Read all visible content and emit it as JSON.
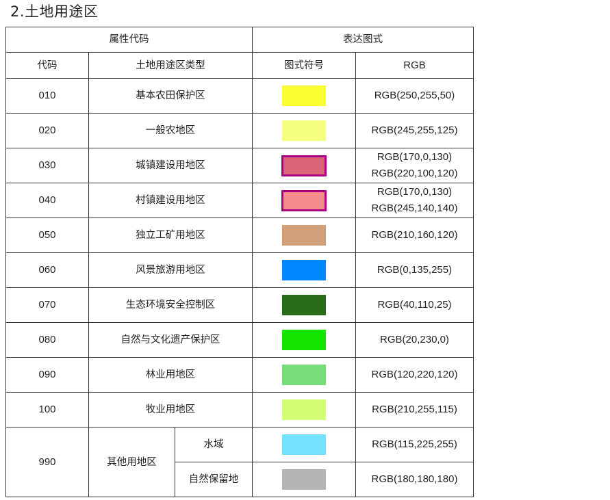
{
  "title": "2.土地用途区",
  "header": {
    "group_attr": "属性代码",
    "group_expr": "表达图式",
    "col_code": "代码",
    "col_type": "土地用途区类型",
    "col_symbol": "图式符号",
    "col_rgb": "RGB"
  },
  "rows": [
    {
      "code": "010",
      "type": "基本农田保护区",
      "fill": "#FAFF32",
      "border": "",
      "rgb1": "RGB(250,255,50)",
      "rgb2": ""
    },
    {
      "code": "020",
      "type": "一般农地区",
      "fill": "#F5FF7D",
      "border": "",
      "rgb1": "RGB(245,255,125)",
      "rgb2": ""
    },
    {
      "code": "030",
      "type": "城镇建设用地区",
      "fill": "#DC6478",
      "border": "#AA0082",
      "rgb1": "RGB(170,0,130)",
      "rgb2": "RGB(220,100,120)"
    },
    {
      "code": "040",
      "type": "村镇建设用地区",
      "fill": "#F58C8C",
      "border": "#AA0082",
      "rgb1": "RGB(170,0,130)",
      "rgb2": "RGB(245,140,140)"
    },
    {
      "code": "050",
      "type": "独立工矿用地区",
      "fill": "#D2A078",
      "border": "",
      "rgb1": "RGB(210,160,120)",
      "rgb2": ""
    },
    {
      "code": "060",
      "type": "风景旅游用地区",
      "fill": "#0087FF",
      "border": "",
      "rgb1": "RGB(0,135,255)",
      "rgb2": ""
    },
    {
      "code": "070",
      "type": "生态环境安全控制区",
      "fill": "#286E19",
      "border": "",
      "rgb1": "RGB(40,110,25)",
      "rgb2": ""
    },
    {
      "code": "080",
      "type": "自然与文化遗产保护区",
      "fill": "#14E600",
      "border": "",
      "rgb1": "RGB(20,230,0)",
      "rgb2": ""
    },
    {
      "code": "090",
      "type": "林业用地区",
      "fill": "#78DC78",
      "border": "",
      "rgb1": "RGB(120,220,120)",
      "rgb2": ""
    },
    {
      "code": "100",
      "type": "牧业用地区",
      "fill": "#D2FF73",
      "border": "",
      "rgb1": "RGB(210,255,115)",
      "rgb2": ""
    }
  ],
  "other": {
    "code": "990",
    "type": "其他用地区",
    "subs": [
      {
        "name": "水域",
        "fill": "#73E1FF",
        "rgb1": "RGB(115,225,255)"
      },
      {
        "name": "自然保留地",
        "fill": "#B4B4B4",
        "rgb1": "RGB(180,180,180)"
      }
    ]
  }
}
